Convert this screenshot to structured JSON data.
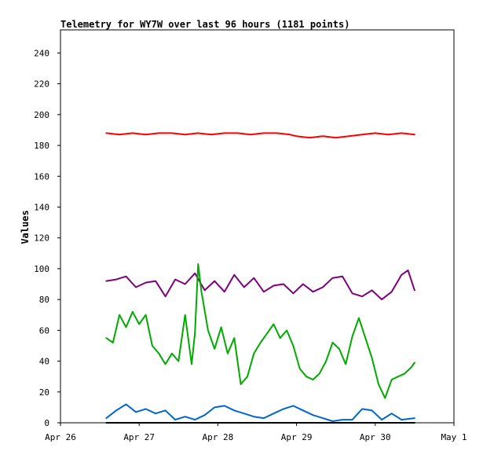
{
  "chart_data": {
    "type": "line",
    "title": "Telemetry for WY7W over last 96 hours (1181 points)",
    "xlabel": "",
    "ylabel": "Values",
    "ylim": [
      0,
      255
    ],
    "xlim": [
      "2023-04-26",
      "2023-05-01"
    ],
    "x_tick_labels": [
      "Apr 26",
      "Apr 27",
      "Apr 28",
      "Apr 29",
      "Apr 30",
      "May 1"
    ],
    "y_ticks": [
      0,
      20,
      40,
      60,
      80,
      100,
      120,
      140,
      160,
      180,
      200,
      220,
      240
    ],
    "grid": false,
    "legend": "none",
    "series": [
      {
        "color": "#ff0000",
        "x": [
          "2023-04-26 14:00",
          "2023-04-26 18:00",
          "2023-04-26 22:00",
          "2023-04-27 02:00",
          "2023-04-27 06:00",
          "2023-04-27 10:00",
          "2023-04-27 14:00",
          "2023-04-27 18:00",
          "2023-04-27 22:00",
          "2023-04-28 02:00",
          "2023-04-28 06:00",
          "2023-04-28 10:00",
          "2023-04-28 14:00",
          "2023-04-28 18:00",
          "2023-04-28 22:00",
          "2023-04-29 00:00",
          "2023-04-29 04:00",
          "2023-04-29 08:00",
          "2023-04-29 12:00",
          "2023-04-29 16:00",
          "2023-04-29 20:00",
          "2023-04-30 00:00",
          "2023-04-30 04:00",
          "2023-04-30 08:00",
          "2023-04-30 12:00"
        ],
        "values": [
          188,
          187,
          188,
          187,
          188,
          188,
          187,
          188,
          187,
          188,
          188,
          187,
          188,
          188,
          187,
          186,
          185,
          186,
          185,
          186,
          187,
          188,
          187,
          188,
          187
        ]
      },
      {
        "color": "#800080",
        "x": [
          "2023-04-26 14:00",
          "2023-04-26 17:00",
          "2023-04-26 20:00",
          "2023-04-26 23:00",
          "2023-04-27 02:00",
          "2023-04-27 05:00",
          "2023-04-27 08:00",
          "2023-04-27 11:00",
          "2023-04-27 14:00",
          "2023-04-27 17:00",
          "2023-04-27 20:00",
          "2023-04-27 23:00",
          "2023-04-28 02:00",
          "2023-04-28 05:00",
          "2023-04-28 08:00",
          "2023-04-28 11:00",
          "2023-04-28 14:00",
          "2023-04-28 17:00",
          "2023-04-28 20:00",
          "2023-04-28 23:00",
          "2023-04-29 02:00",
          "2023-04-29 05:00",
          "2023-04-29 08:00",
          "2023-04-29 11:00",
          "2023-04-29 14:00",
          "2023-04-29 17:00",
          "2023-04-29 20:00",
          "2023-04-29 23:00",
          "2023-04-30 02:00",
          "2023-04-30 05:00",
          "2023-04-30 08:00",
          "2023-04-30 10:00",
          "2023-04-30 12:00"
        ],
        "values": [
          92,
          93,
          95,
          88,
          91,
          92,
          82,
          93,
          90,
          97,
          86,
          92,
          85,
          96,
          88,
          94,
          85,
          89,
          90,
          84,
          90,
          85,
          88,
          94,
          95,
          84,
          82,
          86,
          80,
          85,
          96,
          99,
          86
        ]
      },
      {
        "color": "#00aa00",
        "x": [
          "2023-04-26 14:00",
          "2023-04-26 16:00",
          "2023-04-26 18:00",
          "2023-04-26 20:00",
          "2023-04-26 22:00",
          "2023-04-27 00:00",
          "2023-04-27 02:00",
          "2023-04-27 04:00",
          "2023-04-27 06:00",
          "2023-04-27 08:00",
          "2023-04-27 10:00",
          "2023-04-27 12:00",
          "2023-04-27 14:00",
          "2023-04-27 16:00",
          "2023-04-27 17:00",
          "2023-04-27 18:00",
          "2023-04-27 19:00",
          "2023-04-27 21:00",
          "2023-04-27 23:00",
          "2023-04-28 01:00",
          "2023-04-28 03:00",
          "2023-04-28 05:00",
          "2023-04-28 07:00",
          "2023-04-28 09:00",
          "2023-04-28 11:00",
          "2023-04-28 13:00",
          "2023-04-28 15:00",
          "2023-04-28 17:00",
          "2023-04-28 19:00",
          "2023-04-28 21:00",
          "2023-04-28 23:00",
          "2023-04-29 01:00",
          "2023-04-29 03:00",
          "2023-04-29 05:00",
          "2023-04-29 07:00",
          "2023-04-29 09:00",
          "2023-04-29 11:00",
          "2023-04-29 13:00",
          "2023-04-29 15:00",
          "2023-04-29 17:00",
          "2023-04-29 19:00",
          "2023-04-29 21:00",
          "2023-04-29 23:00",
          "2023-04-30 01:00",
          "2023-04-30 03:00",
          "2023-04-30 05:00",
          "2023-04-30 07:00",
          "2023-04-30 09:00",
          "2023-04-30 11:00",
          "2023-04-30 12:00"
        ],
        "values": [
          55,
          52,
          70,
          62,
          72,
          64,
          70,
          50,
          45,
          38,
          45,
          40,
          70,
          38,
          58,
          103,
          85,
          60,
          48,
          62,
          45,
          55,
          25,
          30,
          45,
          52,
          58,
          64,
          55,
          60,
          50,
          35,
          30,
          28,
          32,
          40,
          52,
          48,
          38,
          56,
          68,
          55,
          42,
          25,
          16,
          28,
          30,
          32,
          36,
          39
        ]
      },
      {
        "color": "#0066cc",
        "x": [
          "2023-04-26 14:00",
          "2023-04-26 17:00",
          "2023-04-26 20:00",
          "2023-04-26 23:00",
          "2023-04-27 02:00",
          "2023-04-27 05:00",
          "2023-04-27 08:00",
          "2023-04-27 11:00",
          "2023-04-27 14:00",
          "2023-04-27 17:00",
          "2023-04-27 20:00",
          "2023-04-27 23:00",
          "2023-04-28 02:00",
          "2023-04-28 05:00",
          "2023-04-28 08:00",
          "2023-04-28 11:00",
          "2023-04-28 14:00",
          "2023-04-28 17:00",
          "2023-04-28 20:00",
          "2023-04-28 23:00",
          "2023-04-29 02:00",
          "2023-04-29 05:00",
          "2023-04-29 08:00",
          "2023-04-29 11:00",
          "2023-04-29 14:00",
          "2023-04-29 17:00",
          "2023-04-29 20:00",
          "2023-04-29 23:00",
          "2023-04-30 02:00",
          "2023-04-30 05:00",
          "2023-04-30 08:00",
          "2023-04-30 12:00"
        ],
        "values": [
          3,
          8,
          12,
          7,
          9,
          6,
          8,
          2,
          4,
          2,
          5,
          10,
          11,
          8,
          6,
          4,
          3,
          6,
          9,
          11,
          8,
          5,
          3,
          1,
          2,
          2,
          9,
          8,
          2,
          6,
          2,
          3
        ]
      },
      {
        "color": "#000000",
        "x": [
          "2023-04-26 14:00",
          "2023-04-30 12:00"
        ],
        "values": [
          0,
          0
        ]
      }
    ]
  }
}
